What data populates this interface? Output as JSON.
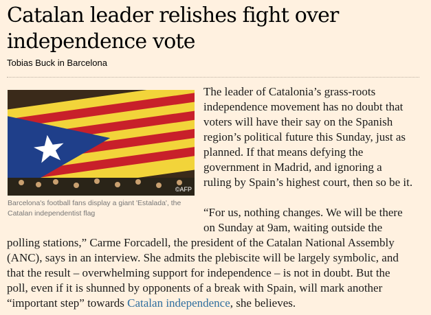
{
  "article": {
    "title_lines": [
      "Catalan leader relishes fight over",
      "independence vote"
    ],
    "byline": "Tobias Buck in Barcelona",
    "image": {
      "credit": "©AFP",
      "caption_lines": [
        "Barcelona's football fans display a giant 'Estalada', the",
        "Catalan independentist flag"
      ]
    },
    "paragraph1_lines": [
      "The leader of Catalonia’s grass-roots",
      "independence movement has no doubt that",
      "voters will have their say on the Spanish",
      "region’s political future this Sunday, just as",
      "planned. If that means defying the",
      "government in Madrid, and ignoring a",
      "ruling by Spain’s highest court, then so be it."
    ],
    "paragraph2_lines": [
      "“For us, nothing changes. We will be there",
      "on Sunday at 9am, waiting outside the",
      "polling stations,” Carme Forcadell, the president of the Catalan National Assembly",
      "(ANC), says in an interview. She admits the plebiscite will be largely symbolic, and",
      "that the result – overwhelming support for independence – is not in doubt. But the",
      "poll, even if it is shunned by opponents of a break with Spain, will mark another"
    ],
    "last_line": {
      "before": "“important step” towards ",
      "link": "Catalan independence",
      "after": ", she believes."
    },
    "colors": {
      "background": "#fff1e0",
      "link": "#2e6e9e"
    }
  }
}
